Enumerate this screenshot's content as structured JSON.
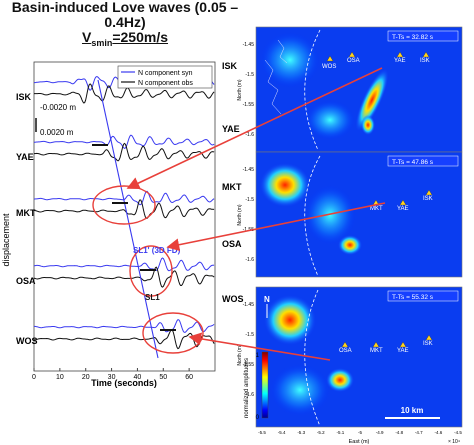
{
  "figure": {
    "title": "Basin-induced Love waves (0.05 – 0.4Hz)",
    "subtitle_prefix": "V",
    "subtitle_sub": "smin",
    "subtitle_suffix": "=250m/s"
  },
  "seismogram": {
    "ylabel": "displacement",
    "xlabel": "Time (seconds)",
    "xticks": [
      "0",
      "10",
      "20",
      "30",
      "40",
      "50",
      "60"
    ],
    "scale_labels": [
      "-0.0020 m",
      "0.0020 m"
    ],
    "legend": [
      "N component syn",
      "N component obs"
    ],
    "stations": [
      "ISK",
      "YAE",
      "MKT",
      "OSA",
      "WOS"
    ],
    "annotations": {
      "sl1_3d": "SL1' (3D FD)",
      "sl1": "SL1"
    },
    "colors": {
      "syn": "#3a3af0",
      "obs": "#111111",
      "accent": "#e8403a"
    }
  },
  "maps": [
    {
      "time_label": "T-Ts = 32.82 s",
      "ylabel": "North (m)",
      "yticks": [
        "-1.45",
        "-1.5",
        "-1.55",
        "-1.6"
      ],
      "stations": [
        "WOS",
        "OSA",
        "YAE",
        "ISK"
      ]
    },
    {
      "time_label": "T-Ts = 47.86 s",
      "ylabel": "North (m)",
      "yticks": [
        "-1.45",
        "-1.5",
        "-1.55",
        "-1.6"
      ],
      "stations": [
        "MKT",
        "YAE",
        "ISK"
      ]
    },
    {
      "time_label": "T-Ts = 55.32 s",
      "ylabel": "North (m)",
      "yticks": [
        "-1.45",
        "-1.5",
        "-1.55",
        "-1.6"
      ],
      "stations": [
        "OSA",
        "MKT",
        "YAE",
        "ISK"
      ]
    }
  ],
  "bottom_map": {
    "xlabel": "East (m)",
    "xticks": [
      "-5.5",
      "-5.4",
      "-5.3",
      "-5.2",
      "-5.1",
      "-5",
      "-4.9",
      "-4.8",
      "-4.7",
      "-4.6",
      "-4.5"
    ],
    "x_exponent": "× 10⁴",
    "scale_bar": "10 km",
    "north": "N"
  },
  "right_station_labels": [
    "ISK",
    "YAE",
    "MKT",
    "OSA",
    "WOS"
  ],
  "colorbar": {
    "label": "normalized amplitudes",
    "ticks": [
      "1",
      "0"
    ]
  }
}
